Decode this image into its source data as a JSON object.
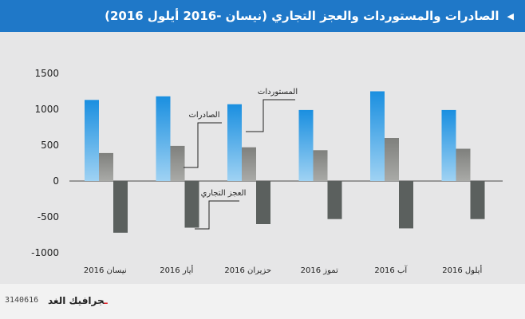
{
  "header": {
    "title": "الصادرات والمستوردات والعجز التجاري (نيسان -2016 أيلول 2016)",
    "icon": "triangle-left-icon"
  },
  "footer": {
    "brand_name": "جرافيك الغد",
    "brand_dash": "ـ",
    "code": "3140616"
  },
  "colors": {
    "imports": "#1a8fe0",
    "exports": "#8c8c8a",
    "deficit": "#5b605e",
    "header": "#1f78c8",
    "plot_bg": "#e6e6e7"
  },
  "chart_data": {
    "type": "bar",
    "title": "الصادرات والمستوردات والعجز التجاري (نيسان -2016 أيلول 2016)",
    "categories": [
      "نيسان 2016",
      "أيار 2016",
      "حزيران 2016",
      "تموز 2016",
      "آب 2016",
      "أيلول 2016"
    ],
    "series": [
      {
        "name": "المستوردات",
        "values": [
          1130,
          1180,
          1070,
          990,
          1250,
          990
        ]
      },
      {
        "name": "الصادرات",
        "values": [
          390,
          490,
          470,
          430,
          600,
          450
        ]
      },
      {
        "name": "العجز التجاري",
        "values": [
          -720,
          -650,
          -600,
          -530,
          -660,
          -530
        ]
      }
    ],
    "ylim": [
      -1000,
      1500
    ],
    "yticks": [
      1500,
      1000,
      500,
      0,
      -500,
      -1000
    ],
    "grid": false,
    "legend": "inline-callouts"
  }
}
